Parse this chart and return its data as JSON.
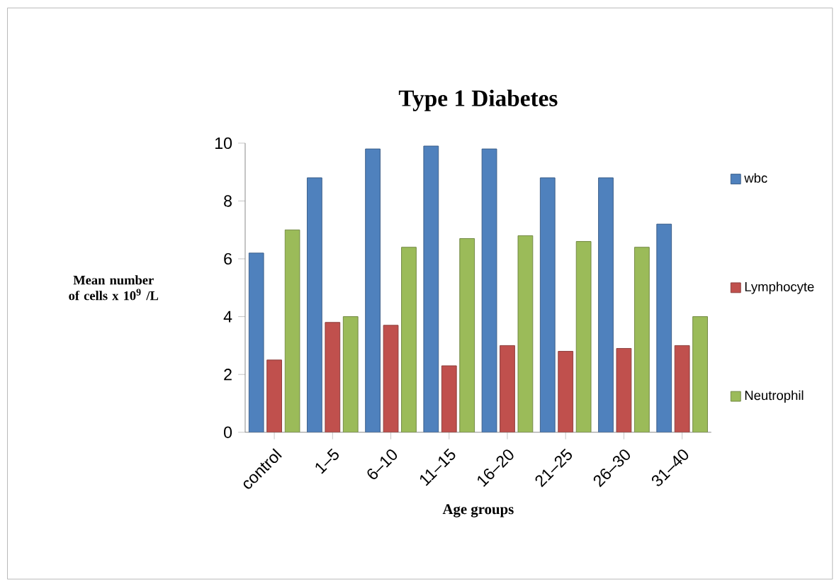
{
  "chart_data": {
    "type": "bar",
    "title": "Type 1 Diabetes",
    "xlabel": "Age groups",
    "ylabel": "Mean number of cells x 10$^{9}$ /L",
    "categories": [
      "control",
      "1–5",
      "6–10",
      "11–15",
      "16–20",
      "21–25",
      "26–30",
      "31–40"
    ],
    "series": [
      {
        "name": "wbc",
        "color": "#4f81bd",
        "values": [
          6.2,
          8.8,
          9.8,
          9.9,
          9.8,
          8.8,
          8.8,
          7.2
        ]
      },
      {
        "name": "Lymphocyte",
        "color": "#c0504d",
        "values": [
          2.5,
          3.8,
          3.7,
          2.3,
          3.0,
          2.8,
          2.9,
          3.0
        ]
      },
      {
        "name": "Neutrophil",
        "color": "#9bbb59",
        "values": [
          7.0,
          4.0,
          6.4,
          6.7,
          6.8,
          6.6,
          6.4,
          4.0
        ]
      }
    ],
    "ylim": [
      0,
      10
    ],
    "yticks": [
      0,
      2,
      4,
      6,
      8,
      10
    ],
    "legend": "right",
    "grid": false
  }
}
